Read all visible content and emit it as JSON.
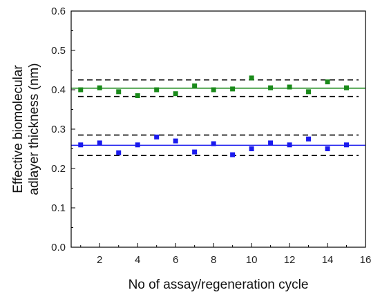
{
  "chart_data": {
    "type": "scatter",
    "title": "",
    "xlabel": "No of assay/regeneration cycle",
    "ylabel_lines": [
      "Effective biomolecular",
      "adlayer thickness (nm)"
    ],
    "xlim": [
      0.5,
      16
    ],
    "ylim": [
      0.0,
      0.6
    ],
    "xticks": [
      2,
      4,
      6,
      8,
      10,
      12,
      14,
      16
    ],
    "yticks": [
      0.0,
      0.1,
      0.2,
      0.3,
      0.4,
      0.5,
      0.6
    ],
    "ytick_labels": [
      "0.0",
      "0.1",
      "0.2",
      "0.3",
      "0.4",
      "0.5",
      "0.6"
    ],
    "grid": false,
    "legend": "none",
    "series": [
      {
        "color": "#1a8a1a",
        "x": [
          1,
          2,
          3,
          4,
          5,
          6,
          7,
          8,
          9,
          10,
          11,
          12,
          13,
          14,
          15
        ],
        "y": [
          0.4,
          0.405,
          0.395,
          0.385,
          0.4,
          0.39,
          0.41,
          0.4,
          0.402,
          0.43,
          0.405,
          0.407,
          0.395,
          0.42,
          0.405
        ],
        "mean": 0.404,
        "band": [
          0.383,
          0.425
        ]
      },
      {
        "color": "#1a1aee",
        "x": [
          1,
          2,
          3,
          4,
          5,
          6,
          7,
          8,
          9,
          10,
          11,
          12,
          13,
          14,
          15
        ],
        "y": [
          0.26,
          0.265,
          0.24,
          0.26,
          0.28,
          0.27,
          0.242,
          0.263,
          0.235,
          0.25,
          0.265,
          0.26,
          0.275,
          0.25,
          0.26
        ],
        "mean": 0.259,
        "band": [
          0.233,
          0.285
        ]
      }
    ]
  }
}
